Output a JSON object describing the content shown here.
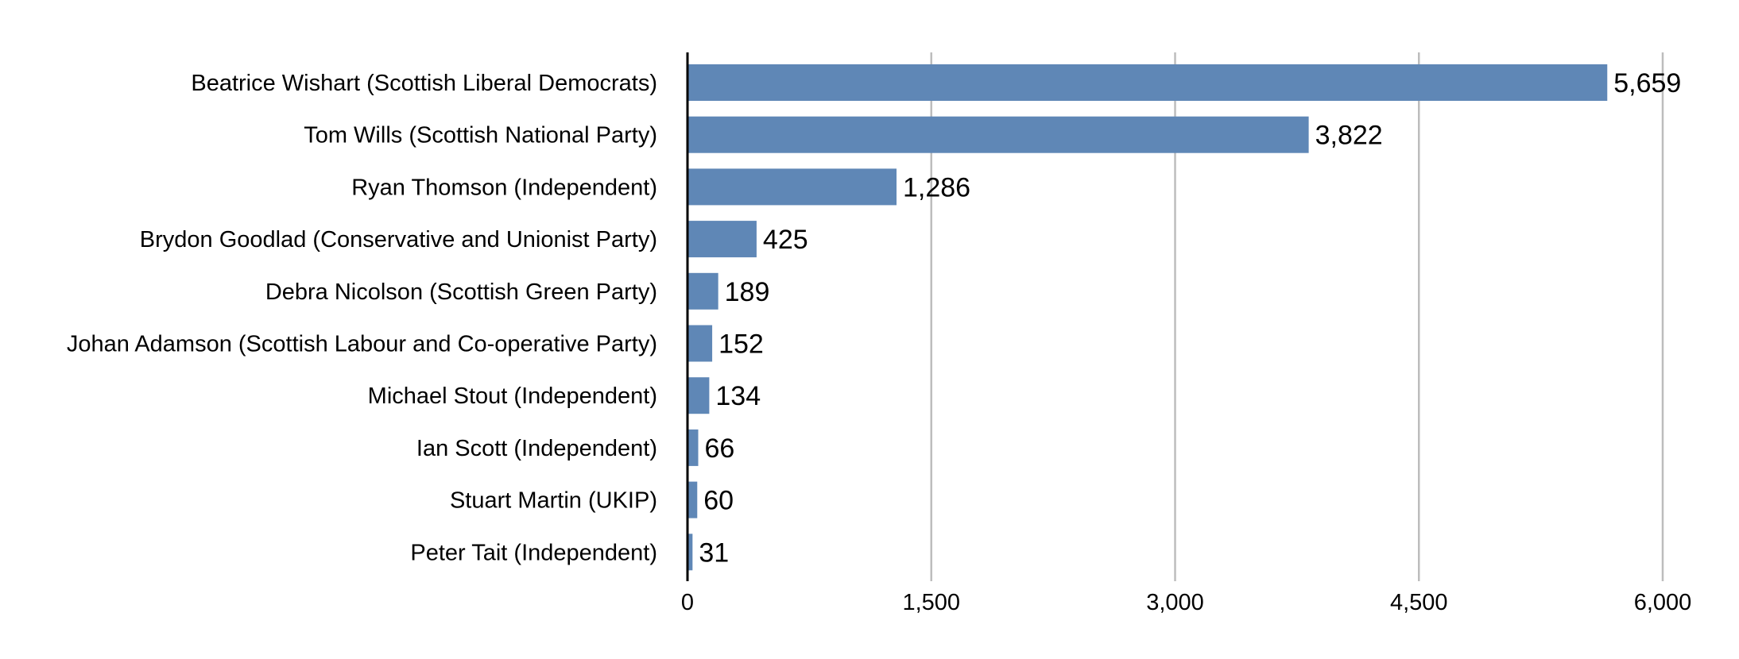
{
  "chart_data": {
    "type": "bar",
    "orientation": "horizontal",
    "categories": [
      "Beatrice Wishart (Scottish Liberal Democrats)",
      "Tom Wills (Scottish National Party)",
      "Ryan Thomson (Independent)",
      "Brydon Goodlad (Conservative and Unionist Party)",
      "Debra Nicolson (Scottish Green Party)",
      "Johan Adamson (Scottish Labour and Co-operative Party)",
      "Michael Stout (Independent)",
      "Ian Scott (Independent)",
      "Stuart Martin (UKIP)",
      "Peter Tait (Independent)"
    ],
    "values": [
      5659,
      3822,
      1286,
      425,
      189,
      152,
      134,
      66,
      60,
      31
    ],
    "value_labels": [
      "5,659",
      "3,822",
      "1,286",
      "425",
      "189",
      "152",
      "134",
      "66",
      "60",
      "31"
    ],
    "title": "",
    "xlabel": "",
    "ylabel": "",
    "xlim": [
      0,
      6000
    ],
    "ticks": [
      0,
      1500,
      3000,
      4500,
      6000
    ],
    "tick_labels": [
      "0",
      "1,500",
      "3,000",
      "4,500",
      "6,000"
    ],
    "grid": true,
    "legend": "none",
    "colors": {
      "bar": "#5f87b6",
      "grid": "#bdbdbd",
      "axis": "#000000"
    }
  }
}
